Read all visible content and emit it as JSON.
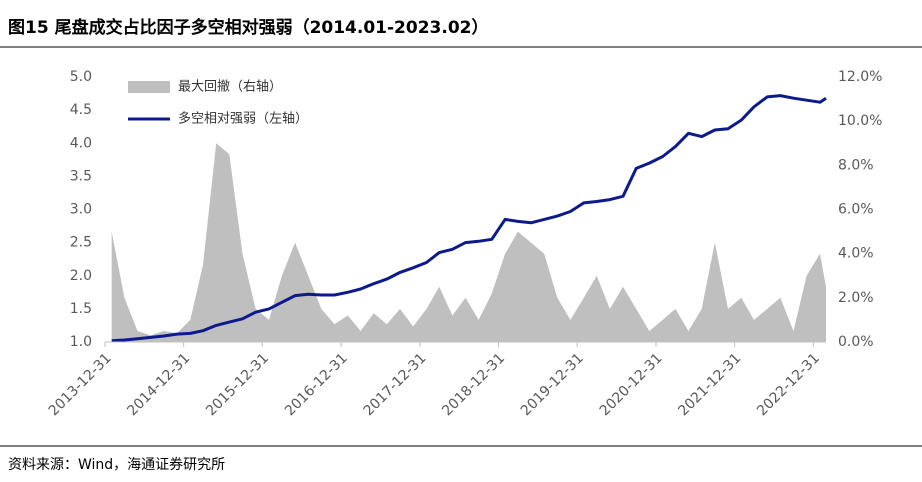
{
  "chart_data": {
    "type": "line_area_dual",
    "title": "图15 尾盘成交占比因子多空相对强弱（2014.01-2023.02）",
    "source": "资料来源：Wind，海通证券研究所",
    "x": [
      "2014-01-31",
      "2014-03-31",
      "2014-05-31",
      "2014-07-31",
      "2014-09-30",
      "2014-11-30",
      "2015-01-31",
      "2015-03-31",
      "2015-05-31",
      "2015-07-31",
      "2015-09-30",
      "2015-11-30",
      "2016-01-31",
      "2016-03-31",
      "2016-05-31",
      "2016-07-31",
      "2016-09-30",
      "2016-11-30",
      "2017-01-31",
      "2017-03-31",
      "2017-05-31",
      "2017-07-31",
      "2017-09-30",
      "2017-11-30",
      "2018-01-31",
      "2018-03-31",
      "2018-05-31",
      "2018-07-31",
      "2018-09-30",
      "2018-11-30",
      "2019-01-31",
      "2019-03-31",
      "2019-05-31",
      "2019-07-31",
      "2019-09-30",
      "2019-11-30",
      "2020-01-31",
      "2020-03-31",
      "2020-05-31",
      "2020-07-31",
      "2020-09-30",
      "2020-11-30",
      "2021-01-31",
      "2021-03-31",
      "2021-05-31",
      "2021-07-31",
      "2021-09-30",
      "2021-11-30",
      "2022-01-31",
      "2022-03-31",
      "2022-05-31",
      "2022-07-31",
      "2022-09-30",
      "2022-11-30",
      "2023-01-31",
      "2023-02-28"
    ],
    "series": [
      {
        "name": "最大回撤（右轴）",
        "color": "#bfbfbf",
        "kind": "area",
        "axis": "y2",
        "values": [
          5.0,
          2.0,
          0.5,
          0.3,
          0.5,
          0.4,
          1.0,
          3.5,
          9.0,
          8.5,
          4.0,
          1.5,
          1.0,
          3.0,
          4.5,
          3.0,
          1.5,
          0.8,
          1.2,
          0.5,
          1.3,
          0.8,
          1.5,
          0.7,
          1.5,
          2.5,
          1.2,
          2.0,
          1.0,
          2.2,
          4.0,
          5.0,
          4.5,
          4.0,
          2.0,
          1.0,
          2.0,
          3.0,
          1.5,
          2.5,
          1.5,
          0.5,
          1.0,
          1.5,
          0.5,
          1.5,
          4.5,
          1.5,
          2.0,
          1.0,
          1.5,
          2.0,
          0.5,
          3.0,
          4.0,
          2.5
        ]
      },
      {
        "name": "多空相对强弱（左轴）",
        "color": "#0c1a8c",
        "kind": "line",
        "values": [
          1.02,
          1.03,
          1.05,
          1.07,
          1.09,
          1.12,
          1.13,
          1.17,
          1.25,
          1.3,
          1.35,
          1.45,
          1.5,
          1.6,
          1.7,
          1.72,
          1.71,
          1.71,
          1.75,
          1.8,
          1.88,
          1.95,
          2.05,
          2.12,
          2.2,
          2.35,
          2.4,
          2.5,
          2.52,
          2.55,
          2.85,
          2.82,
          2.8,
          2.85,
          2.9,
          2.97,
          3.1,
          3.12,
          3.15,
          3.2,
          3.62,
          3.7,
          3.8,
          3.95,
          4.15,
          4.1,
          4.2,
          4.22,
          4.35,
          4.55,
          4.7,
          4.72,
          4.68,
          4.65,
          4.62,
          4.68
        ]
      }
    ],
    "xlim": [
      "2013-12-31",
      "2023-02-28"
    ],
    "xticks": [
      "2013-12-31",
      "2014-12-31",
      "2015-12-31",
      "2016-12-31",
      "2017-12-31",
      "2018-12-31",
      "2019-12-31",
      "2020-12-31",
      "2021-12-31",
      "2022-12-31"
    ],
    "ylim": [
      1.0,
      5.0
    ],
    "yticks": [
      {
        "value": 1.0,
        "label": "1.0"
      },
      {
        "value": 1.5,
        "label": "1.5"
      },
      {
        "value": 2.0,
        "label": "2.0"
      },
      {
        "value": 2.5,
        "label": "2.5"
      },
      {
        "value": 3.0,
        "label": "3.0"
      },
      {
        "value": 3.5,
        "label": "3.5"
      },
      {
        "value": 4.0,
        "label": "4.0"
      },
      {
        "value": 4.5,
        "label": "4.5"
      },
      {
        "value": 5.0,
        "label": "5.0"
      }
    ],
    "y2lim": [
      0,
      12
    ],
    "y2ticks": [
      {
        "value": 0,
        "label": "0.0%"
      },
      {
        "value": 2,
        "label": "2.0%"
      },
      {
        "value": 4,
        "label": "4.0%"
      },
      {
        "value": 6,
        "label": "6.0%"
      },
      {
        "value": 8,
        "label": "8.0%"
      },
      {
        "value": 10,
        "label": "10.0%"
      },
      {
        "value": 12,
        "label": "12.0%"
      }
    ],
    "legend": "upper left",
    "grid": false
  }
}
